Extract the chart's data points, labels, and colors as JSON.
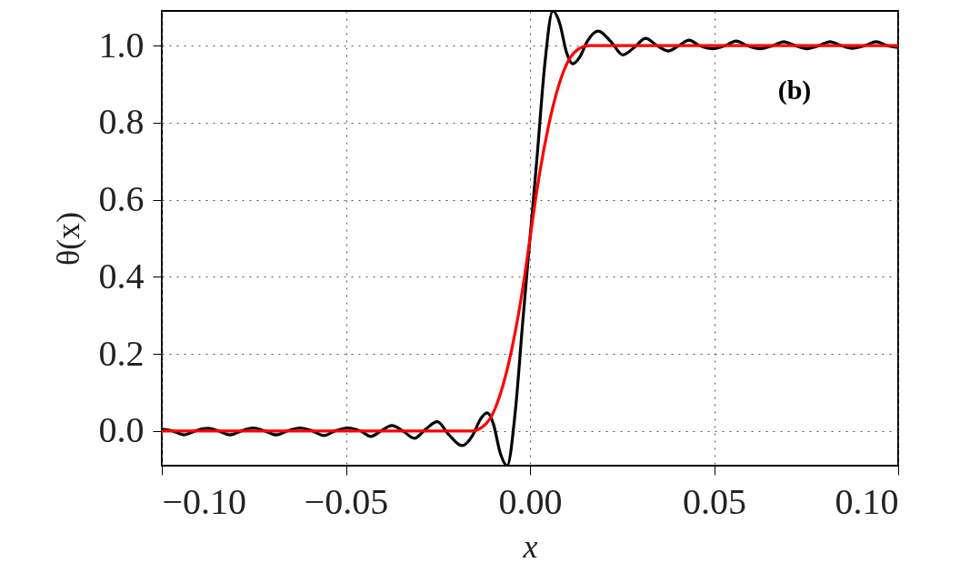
{
  "chart_data": {
    "type": "line",
    "xlabel": "x",
    "ylabel": "θ(x)",
    "xlim": [
      -0.1,
      0.1
    ],
    "ylim": [
      -0.09,
      1.09
    ],
    "xticks": [
      {
        "value": -0.1,
        "label": "−0.10"
      },
      {
        "value": -0.05,
        "label": "−0.05"
      },
      {
        "value": 0,
        "label": "0.00"
      },
      {
        "value": 0.05,
        "label": "0.05"
      },
      {
        "value": 0.1,
        "label": "0.10"
      }
    ],
    "yticks": [
      {
        "value": 0,
        "label": "0.0"
      },
      {
        "value": 0.2,
        "label": "0.2"
      },
      {
        "value": 0.4,
        "label": "0.4"
      },
      {
        "value": 0.6,
        "label": "0.6"
      },
      {
        "value": 0.8,
        "label": "0.8"
      },
      {
        "value": 1.0,
        "label": "1.0"
      }
    ],
    "grid": true,
    "marker": "none",
    "line_style": "solid",
    "annotations": [
      "(b)"
    ],
    "series": [
      {
        "color": "#000000",
        "x": [
          -0.1,
          -0.097,
          -0.094,
          -0.091,
          -0.0875,
          -0.0845,
          -0.0815,
          -0.0785,
          -0.0752,
          -0.072,
          -0.0689,
          -0.066,
          -0.0625,
          -0.059,
          -0.056,
          -0.053,
          -0.0495,
          -0.046,
          -0.0432,
          -0.0405,
          -0.0375,
          -0.0345,
          -0.0314,
          -0.0283,
          -0.0252,
          -0.022,
          -0.0185,
          -0.0155,
          -0.0135,
          -0.0116,
          -0.01,
          -0.008,
          -0.0062,
          -0.004,
          -0.002,
          0,
          0.002,
          0.004,
          0.0062,
          0.008,
          0.01,
          0.0116,
          0.0135,
          0.0155,
          0.0185,
          0.022,
          0.0252,
          0.0283,
          0.0314,
          0.0345,
          0.0375,
          0.0405,
          0.0432,
          0.046,
          0.0495,
          0.053,
          0.056,
          0.059,
          0.0625,
          0.066,
          0.0689,
          0.072,
          0.0752,
          0.0785,
          0.0815,
          0.0845,
          0.0875,
          0.091,
          0.094,
          0.097,
          0.1
        ],
        "values": [
          0.005,
          0.0,
          -0.01,
          0.0,
          0.007,
          0.0,
          -0.01,
          0.0,
          0.008,
          0.0,
          -0.01,
          0.0,
          0.008,
          0.0,
          -0.012,
          0.0,
          0.008,
          0.0,
          -0.014,
          0.0,
          0.014,
          0.0,
          -0.019,
          0.005,
          0.024,
          -0.01,
          -0.038,
          -0.01,
          0.03,
          0.047,
          0.02,
          -0.06,
          -0.09,
          0.05,
          0.28,
          0.5,
          0.72,
          0.95,
          1.09,
          1.06,
          0.98,
          0.953,
          0.97,
          1.01,
          1.038,
          1.01,
          0.976,
          0.995,
          1.019,
          1.0,
          0.986,
          1.0,
          1.014,
          1.0,
          0.992,
          1.0,
          1.012,
          1.0,
          0.992,
          1.0,
          1.01,
          1.0,
          0.992,
          1.0,
          1.01,
          1.0,
          0.993,
          1.0,
          1.01,
          1.0,
          0.995
        ]
      },
      {
        "color": "#ff0000",
        "x": [
          -0.1,
          -0.016,
          -0.013,
          -0.011,
          -0.009,
          -0.007,
          -0.005,
          -0.003,
          -0.0015,
          0,
          0.0015,
          0.003,
          0.005,
          0.007,
          0.009,
          0.011,
          0.013,
          0.016,
          0.1
        ],
        "values": [
          0.0,
          0.0,
          0.01,
          0.03,
          0.07,
          0.13,
          0.21,
          0.31,
          0.4,
          0.5,
          0.6,
          0.69,
          0.79,
          0.87,
          0.93,
          0.97,
          0.99,
          1.0,
          1.0
        ]
      }
    ]
  }
}
